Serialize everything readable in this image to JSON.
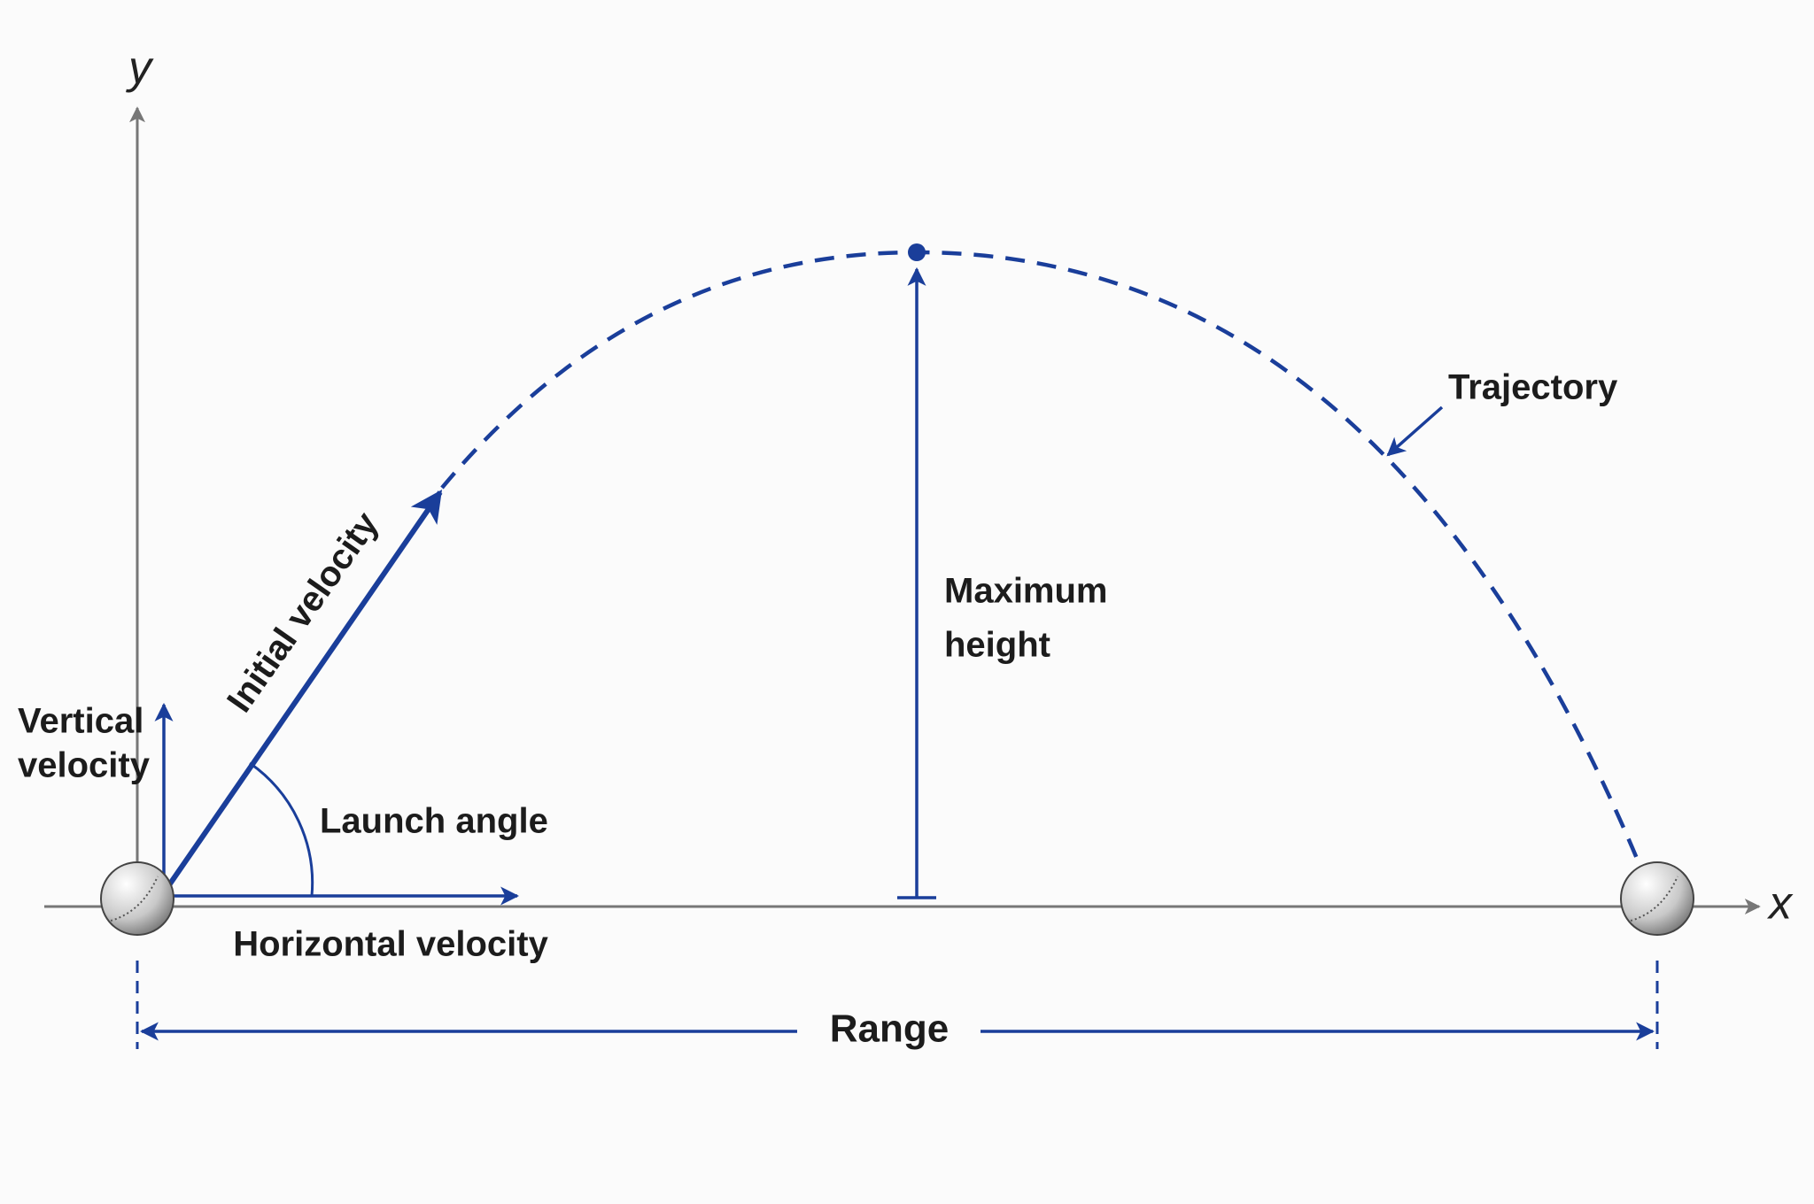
{
  "axes": {
    "y": "y",
    "x": "x"
  },
  "labels": {
    "initial_velocity": "Initial velocity",
    "vertical_velocity": [
      "Vertical",
      "velocity"
    ],
    "launch_angle": "Launch angle",
    "horizontal_velocity": "Horizontal velocity",
    "maximum_height": [
      "Maximum",
      "height"
    ],
    "trajectory": "Trajectory",
    "range": "Range"
  }
}
